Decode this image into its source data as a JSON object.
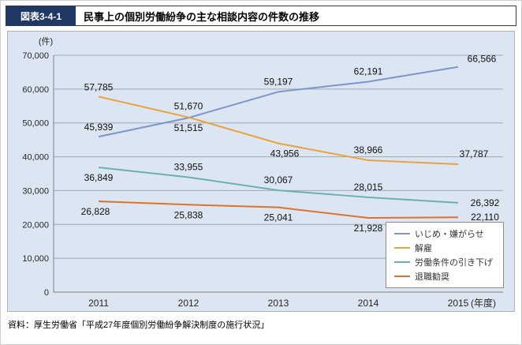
{
  "header": {
    "figure_label": "図表3-4-1",
    "title": "民事上の個別労働紛争の主な相談内容の件数の推移"
  },
  "chart_data": {
    "type": "line",
    "title": "民事上の個別労働紛争の主な相談内容の件数の推移",
    "unit_label": "(件)",
    "x_axis_suffix": "(年度)",
    "categories": [
      "2011",
      "2012",
      "2013",
      "2014",
      "2015"
    ],
    "series": [
      {
        "name": "いじめ・嫌がらせ",
        "color": "#7d95cc",
        "values": [
          45939,
          51515,
          59197,
          62191,
          66566
        ]
      },
      {
        "name": "解雇",
        "color": "#e8a33d",
        "values": [
          57785,
          51670,
          43956,
          38966,
          37787
        ]
      },
      {
        "name": "労働条件の引き下げ",
        "color": "#6cb1a6",
        "values": [
          36849,
          33955,
          30067,
          28015,
          26392
        ]
      },
      {
        "name": "退職勧奨",
        "color": "#d9732e",
        "values": [
          26828,
          25838,
          25041,
          21928,
          22110
        ]
      }
    ],
    "ylim": [
      0,
      70000
    ],
    "ytick_step": 10000,
    "yticks": [
      "0",
      "10,000",
      "20,000",
      "30,000",
      "40,000",
      "50,000",
      "60,000",
      "70,000"
    ],
    "grid": true,
    "legend_position": "bottom-right"
  },
  "footer": {
    "source": "資料：厚生労働省「平成27年度個別労働紛争解決制度の施行状況」"
  },
  "colors": {
    "header_bg": "#1f3864",
    "panel_bg": "#dce6f2",
    "grid_line": "#9fa8b8",
    "axis_line": "#7f7f7f"
  }
}
